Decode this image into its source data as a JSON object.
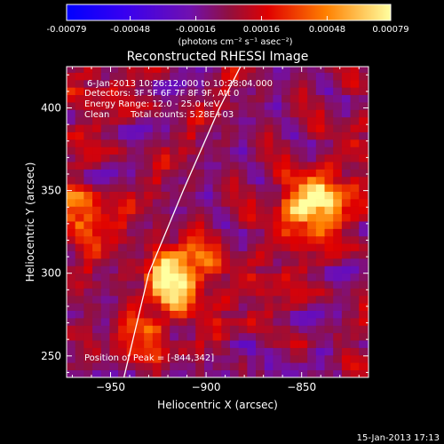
{
  "chart_data": {
    "type": "heatmap",
    "title": "Reconstructed RHESSI Image",
    "xlabel": "Heliocentric X (arcsec)",
    "ylabel": "Heliocentric Y (arcsec)",
    "xlim": [
      -973,
      -815
    ],
    "ylim": [
      237,
      425
    ],
    "x_ticks": [
      -950,
      -900,
      -850
    ],
    "y_ticks": [
      250,
      300,
      350,
      400
    ],
    "colorbar": {
      "range": [
        -0.00079,
        0.00079
      ],
      "tick_values": [
        -0.00079,
        -0.00048,
        -0.00016,
        0.00016,
        0.00048,
        0.00079
      ],
      "tick_labels": [
        "-0.00079",
        "-0.00048",
        "-0.00016",
        "0.00016",
        "0.00048",
        "0.00079"
      ],
      "unit_label": "(photons cm⁻² s⁻¹ asec⁻²)"
    },
    "annotations": {
      "time_range": "6-Jan-2013 10:26:12.000 to 10:28:04.000",
      "detectors": "Detectors: 3F 5F 6F 7F 8F 9F, Att 0",
      "energy_range": "Energy Range: 12.0 - 25.0 keV",
      "clean_label": "Clean",
      "total_counts": "Total counts: 5.28E+03",
      "peak": "Position of Peak = [-844,342]"
    },
    "sources": [
      {
        "x": -844,
        "y": 342,
        "peak": 0.00079
      },
      {
        "x": -967,
        "y": 335,
        "peak": 0.00056
      },
      {
        "x": -913,
        "y": 305,
        "peak": 0.00062
      },
      {
        "x": -920,
        "y": 290,
        "peak": 0.00046
      },
      {
        "x": -930,
        "y": 260,
        "peak": 0.00036
      }
    ],
    "limb_arc": [
      [
        -943,
        237
      ],
      [
        -930,
        300
      ],
      [
        -912,
        350
      ],
      [
        -893,
        400
      ],
      [
        -882,
        425
      ]
    ],
    "colors": {
      "negative": "#3c00f0",
      "background": "#5a1c9c",
      "positive_mid": "#e00000",
      "positive_high": "#ffff80"
    }
  },
  "footer": {
    "timestamp": "15-Jan-2013 17:13"
  }
}
